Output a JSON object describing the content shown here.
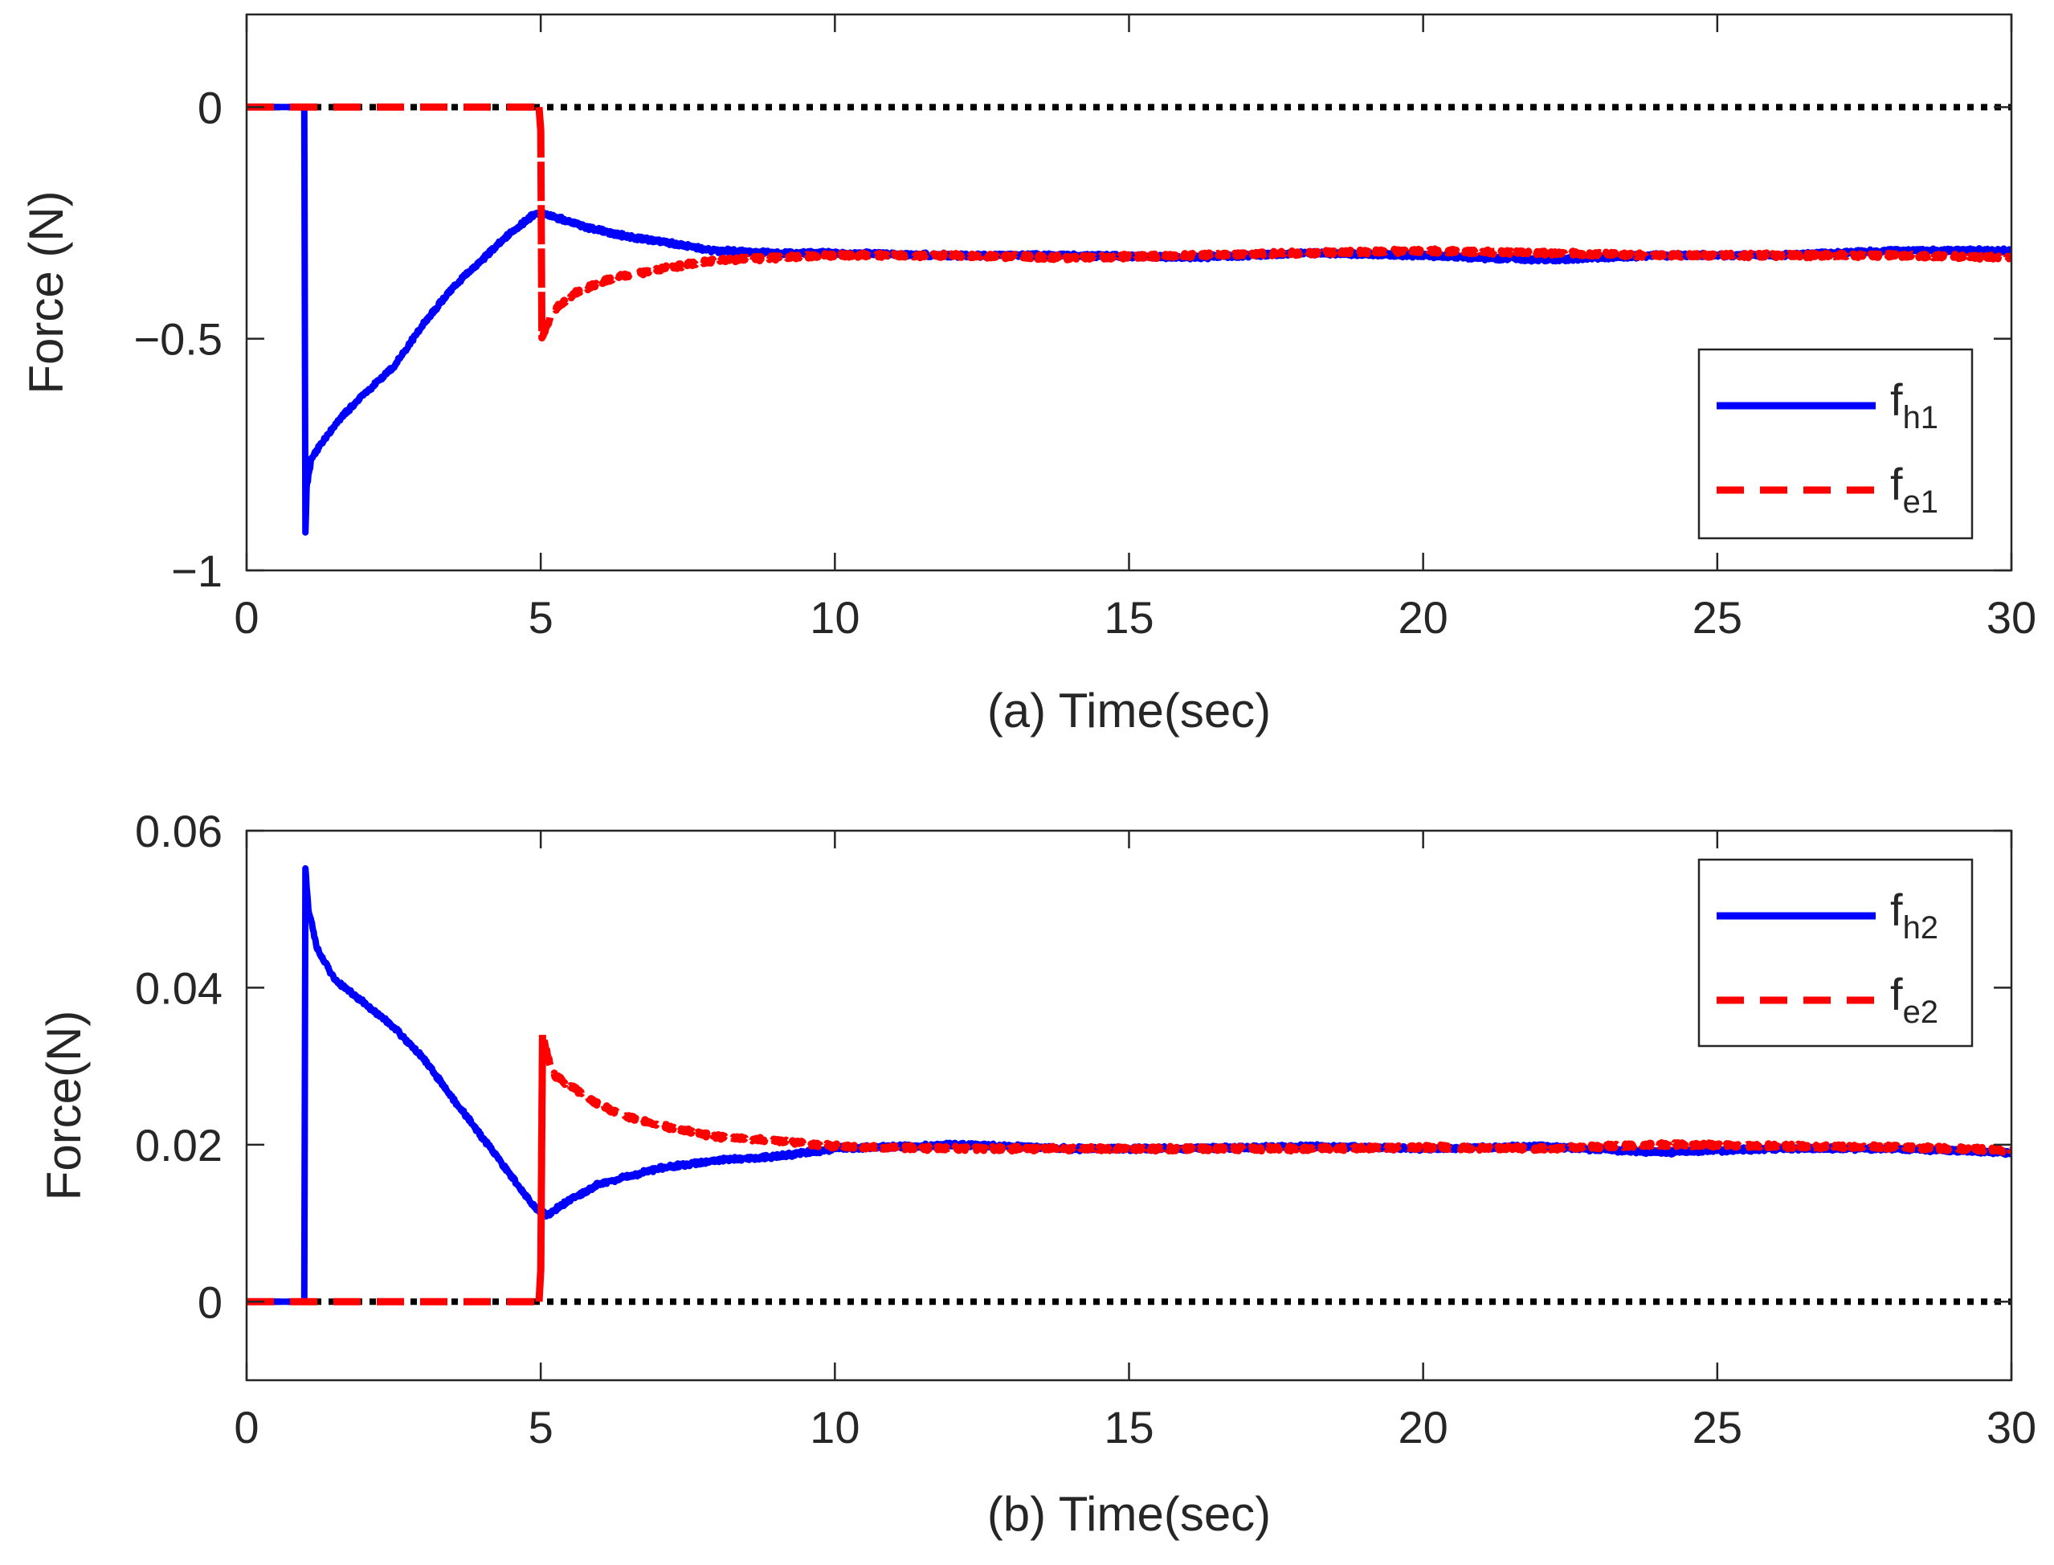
{
  "chart_data": [
    {
      "type": "line",
      "panel": "a",
      "title": "",
      "xlabel": "(a) Time(sec)",
      "ylabel": "Force (N)",
      "xlim": [
        0,
        30
      ],
      "ylim": [
        -1,
        0.2
      ],
      "xticks": [
        0,
        5,
        10,
        15,
        20,
        25,
        30
      ],
      "xtick_labels": [
        "0",
        "5",
        "10",
        "15",
        "20",
        "25",
        "30"
      ],
      "yticks": [
        -1,
        -0.5,
        0
      ],
      "ytick_labels": [
        "−1",
        "−0.5",
        "0"
      ],
      "legend_position": "bottom-right",
      "reference_line": {
        "y": 0,
        "style": "dotted",
        "color": "#000000"
      },
      "series": [
        {
          "name": "f_h1",
          "label_base": "f",
          "label_sub": "h1",
          "color": "#0000ff",
          "style": "solid",
          "x": [
            0,
            0.98,
            1.0,
            1.02,
            1.1,
            1.3,
            1.6,
            2.0,
            2.5,
            3.0,
            3.5,
            4.0,
            4.5,
            4.9,
            5.0,
            5.3,
            5.8,
            6.5,
            7.0,
            8.0,
            9.0,
            10.0,
            12.0,
            14.0,
            16.0,
            18.0,
            20.0,
            22.0,
            24.0,
            26.0,
            28.0,
            30.0
          ],
          "y": [
            0,
            0,
            -0.92,
            -0.82,
            -0.76,
            -0.72,
            -0.67,
            -0.62,
            -0.56,
            -0.47,
            -0.39,
            -0.33,
            -0.27,
            -0.23,
            -0.23,
            -0.24,
            -0.26,
            -0.28,
            -0.29,
            -0.31,
            -0.315,
            -0.315,
            -0.32,
            -0.32,
            -0.325,
            -0.315,
            -0.32,
            -0.33,
            -0.32,
            -0.32,
            -0.31,
            -0.31
          ]
        },
        {
          "name": "f_e1",
          "label_base": "f",
          "label_sub": "e1",
          "color": "#ff0000",
          "style": "dashed",
          "x": [
            0,
            4.97,
            5.0,
            5.02,
            5.2,
            5.6,
            6.2,
            7.0,
            8.0,
            9.0,
            10.0,
            12.0,
            14.0,
            16.0,
            18.0,
            20.0,
            22.0,
            24.0,
            26.0,
            28.0,
            30.0
          ],
          "y": [
            0,
            0,
            -0.05,
            -0.5,
            -0.44,
            -0.4,
            -0.37,
            -0.35,
            -0.33,
            -0.325,
            -0.32,
            -0.32,
            -0.325,
            -0.32,
            -0.315,
            -0.31,
            -0.315,
            -0.32,
            -0.32,
            -0.32,
            -0.325
          ]
        }
      ]
    },
    {
      "type": "line",
      "panel": "b",
      "title": "",
      "xlabel": "(b) Time(sec)",
      "ylabel": "Force(N)",
      "xlim": [
        0,
        30
      ],
      "ylim": [
        -0.01,
        0.06
      ],
      "xticks": [
        0,
        5,
        10,
        15,
        20,
        25,
        30
      ],
      "xtick_labels": [
        "0",
        "5",
        "10",
        "15",
        "20",
        "25",
        "30"
      ],
      "yticks": [
        0,
        0.02,
        0.04,
        0.06
      ],
      "ytick_labels": [
        "0",
        "0.02",
        "0.04",
        "0.06"
      ],
      "legend_position": "top-right",
      "reference_line": {
        "y": 0,
        "style": "dotted",
        "color": "#000000"
      },
      "series": [
        {
          "name": "f_h2",
          "label_base": "f",
          "label_sub": "h2",
          "color": "#0000ff",
          "style": "solid",
          "x": [
            0,
            0.98,
            1.0,
            1.05,
            1.2,
            1.5,
            2.0,
            2.5,
            3.0,
            3.5,
            4.0,
            4.5,
            4.9,
            5.1,
            5.5,
            6.0,
            7.0,
            8.0,
            9.0,
            10.0,
            12.0,
            14.0,
            16.0,
            18.0,
            20.0,
            22.0,
            24.0,
            26.0,
            28.0,
            30.0
          ],
          "y": [
            0,
            0,
            0.055,
            0.05,
            0.045,
            0.041,
            0.038,
            0.035,
            0.031,
            0.026,
            0.021,
            0.016,
            0.012,
            0.011,
            0.013,
            0.015,
            0.017,
            0.018,
            0.0185,
            0.0195,
            0.02,
            0.0195,
            0.0195,
            0.0198,
            0.0195,
            0.0198,
            0.019,
            0.0195,
            0.0195,
            0.019
          ]
        },
        {
          "name": "f_e2",
          "label_base": "f",
          "label_sub": "e2",
          "color": "#ff0000",
          "style": "dashed",
          "x": [
            0,
            4.97,
            5.0,
            5.03,
            5.2,
            5.6,
            6.0,
            6.5,
            7.0,
            8.0,
            9.0,
            10.0,
            12.0,
            14.0,
            16.0,
            18.0,
            20.0,
            22.0,
            24.0,
            26.0,
            28.0,
            30.0
          ],
          "y": [
            0,
            0,
            0.004,
            0.034,
            0.029,
            0.027,
            0.025,
            0.0235,
            0.0225,
            0.021,
            0.0205,
            0.0198,
            0.0195,
            0.0195,
            0.0195,
            0.0195,
            0.0197,
            0.0195,
            0.02,
            0.0198,
            0.0197,
            0.0193
          ]
        }
      ]
    }
  ]
}
